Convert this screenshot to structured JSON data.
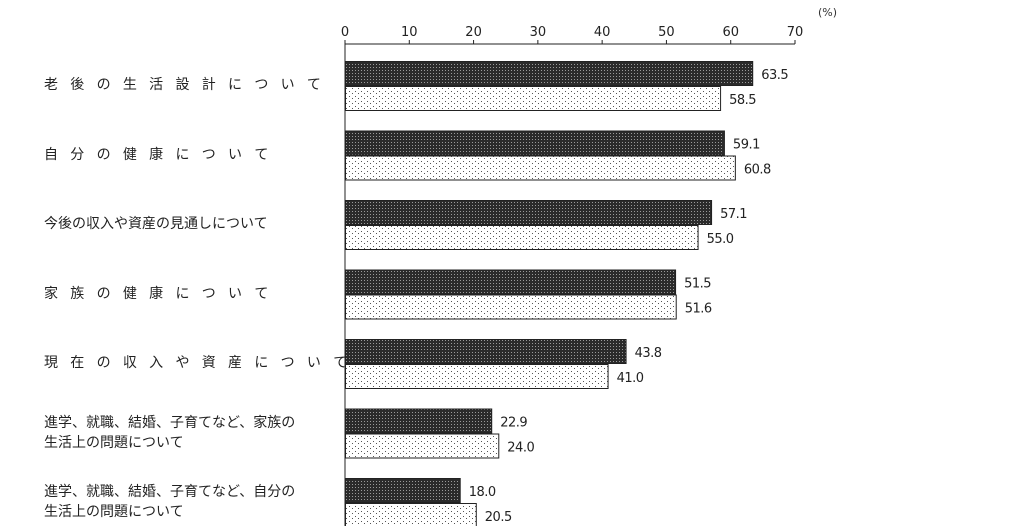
{
  "chart_data": {
    "type": "bar",
    "orientation": "horizontal",
    "unit": "(%)",
    "xlim": [
      0,
      70
    ],
    "xticks": [
      0,
      10,
      20,
      30,
      40,
      50,
      60,
      70
    ],
    "categories": [
      "老後の生活設計について",
      "自分の健康について",
      "今後の収入や資産の見通しについて",
      "家族の健康について",
      "現在の収入や資産について",
      "進学、就職、結婚、子育てなど、家族の生活上の問題について",
      "進学、就職、結婚、子育てなど、自分の生活上の問題について"
    ],
    "category_display": [
      [
        "老 後 の 生 活 設 計 に つ い て"
      ],
      [
        "自 分 の 健 康 に つ い て"
      ],
      [
        "今後の収入や資産の見通しについて"
      ],
      [
        "家 族 の 健 康 に つ い て"
      ],
      [
        "現 在 の 収 入 や 資 産 に つ い て"
      ],
      [
        "進学、就職、結婚、子育てなど、家族の",
        "生活上の問題について"
      ],
      [
        "進学、就職、結婚、子育てなど、自分の",
        "生活上の問題について"
      ]
    ],
    "series": [
      {
        "values": [
          63.5,
          59.1,
          57.1,
          51.5,
          43.8,
          22.9,
          18.0
        ],
        "pattern": "dense-dark"
      },
      {
        "values": [
          58.5,
          60.8,
          55.0,
          51.6,
          41.0,
          24.0,
          20.5
        ],
        "pattern": "light-dots"
      }
    ],
    "value_labels": [
      [
        "63.5",
        "59.1",
        "57.1",
        "51.5",
        "43.8",
        "22.9",
        "18.0"
      ],
      [
        "58.5",
        "60.8",
        "55.0",
        "51.6",
        "41.0",
        "24.0",
        "20.5"
      ]
    ],
    "colors": {
      "dark_bar": "#3a3a3a",
      "light_bar": "#ffffff",
      "outline": "#222222"
    }
  }
}
